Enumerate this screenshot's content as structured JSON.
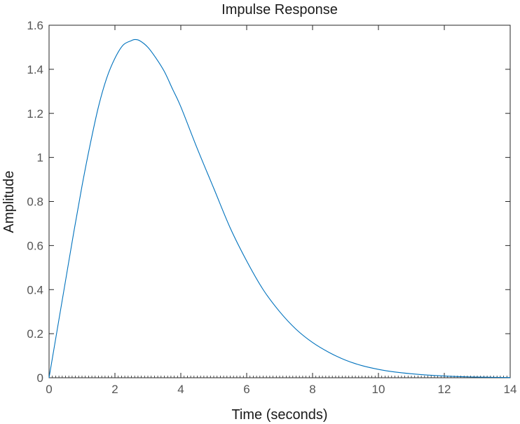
{
  "chart_data": {
    "type": "line",
    "title": "Impulse Response",
    "xlabel": "Time (seconds)",
    "ylabel": "Amplitude",
    "xlim": [
      0,
      14
    ],
    "ylim": [
      0,
      1.6
    ],
    "xticks": [
      0,
      2,
      4,
      6,
      8,
      10,
      12,
      14
    ],
    "xtick_labels": [
      "0",
      "2",
      "4",
      "6",
      "8",
      "10",
      "12",
      "14"
    ],
    "yticks": [
      0,
      0.2,
      0.4,
      0.6,
      0.8,
      1,
      1.2,
      1.4,
      1.6
    ],
    "ytick_labels": [
      "0",
      "0.2",
      "0.4",
      "0.6",
      "0.8",
      "1",
      "1.2",
      "1.4",
      "1.6"
    ],
    "grid": false,
    "series": [
      {
        "color": "#0072BD",
        "x": [
          0,
          0.25,
          0.5,
          0.75,
          1,
          1.25,
          1.5,
          1.75,
          2,
          2.25,
          2.5,
          2.6,
          2.75,
          3,
          3.25,
          3.5,
          3.75,
          4,
          4.5,
          5,
          5.5,
          6,
          6.5,
          7,
          7.5,
          8,
          8.5,
          9,
          9.5,
          10,
          10.5,
          11,
          11.5,
          12,
          12.5,
          13,
          13.5,
          14
        ],
        "y": [
          0,
          0.22,
          0.44,
          0.66,
          0.87,
          1.06,
          1.23,
          1.36,
          1.45,
          1.51,
          1.53,
          1.535,
          1.53,
          1.5,
          1.45,
          1.39,
          1.31,
          1.23,
          1.04,
          0.86,
          0.68,
          0.53,
          0.4,
          0.3,
          0.22,
          0.16,
          0.115,
          0.08,
          0.055,
          0.038,
          0.026,
          0.018,
          0.012,
          0.008,
          0.005,
          0.003,
          0.002,
          0.001
        ]
      }
    ],
    "colors": {
      "line": "#0072BD",
      "axes": "#262626",
      "tick_text": "#555555"
    }
  }
}
